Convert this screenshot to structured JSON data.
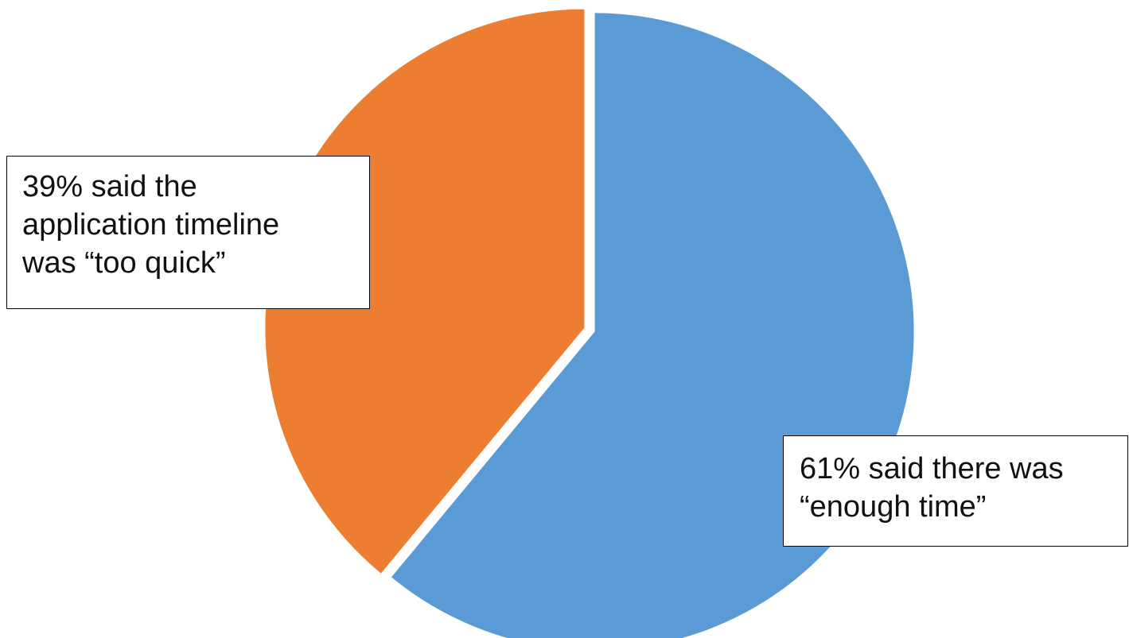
{
  "chart_data": {
    "type": "pie",
    "slices": [
      {
        "value": 61,
        "color": "#5b9bd5",
        "label_lines": [
          "61% said there was",
          "“enough time”"
        ]
      },
      {
        "value": 39,
        "color": "#ed7d31",
        "label_lines": [
          "39% said the",
          "application timeline",
          "was “too quick”"
        ]
      }
    ],
    "start_angle": "12 o'clock",
    "direction": "clockwise",
    "exploded": true,
    "legend": "none"
  }
}
